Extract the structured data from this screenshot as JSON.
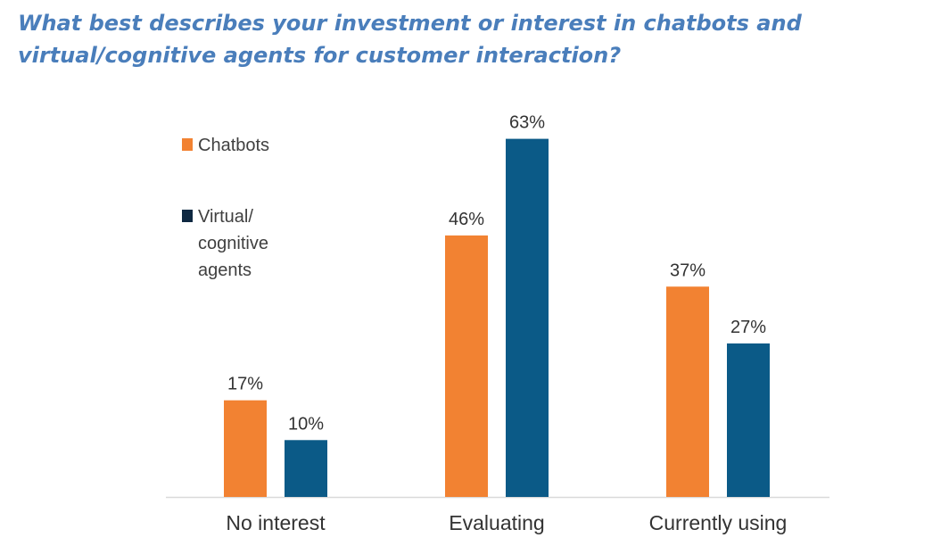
{
  "title": "What best describes your investment or interest in chatbots and virtual/cognitive agents for customer interaction?",
  "colors": {
    "title": "#4A7EBB",
    "chatbots": "#F28232",
    "virtual": "#0B5A87",
    "virtual_legend": "#0E2841"
  },
  "legend": [
    {
      "name": "Chatbots",
      "swatch": "#F28232",
      "lines": [
        "Chatbots"
      ]
    },
    {
      "name": "Virtual/ cognitive agents",
      "swatch": "#0E2841",
      "lines": [
        "Virtual/",
        "cognitive",
        "agents"
      ]
    }
  ],
  "chart_data": {
    "type": "bar",
    "title": "What best describes your investment or interest in chatbots and virtual/cognitive agents for customer interaction?",
    "categories": [
      "No interest",
      "Evaluating",
      "Currently using"
    ],
    "series": [
      {
        "name": "Chatbots",
        "values": [
          17,
          46,
          37
        ],
        "labels": [
          "17%",
          "46%",
          "37%"
        ],
        "color": "#F28232"
      },
      {
        "name": "Virtual/ cognitive agents",
        "values": [
          10,
          63,
          27
        ],
        "labels": [
          "10%",
          "63%",
          "27%"
        ],
        "color": "#0B5A87"
      }
    ],
    "unit": "%",
    "ylim": [
      0,
      70
    ],
    "grid": false,
    "legend_position": "top-left"
  }
}
